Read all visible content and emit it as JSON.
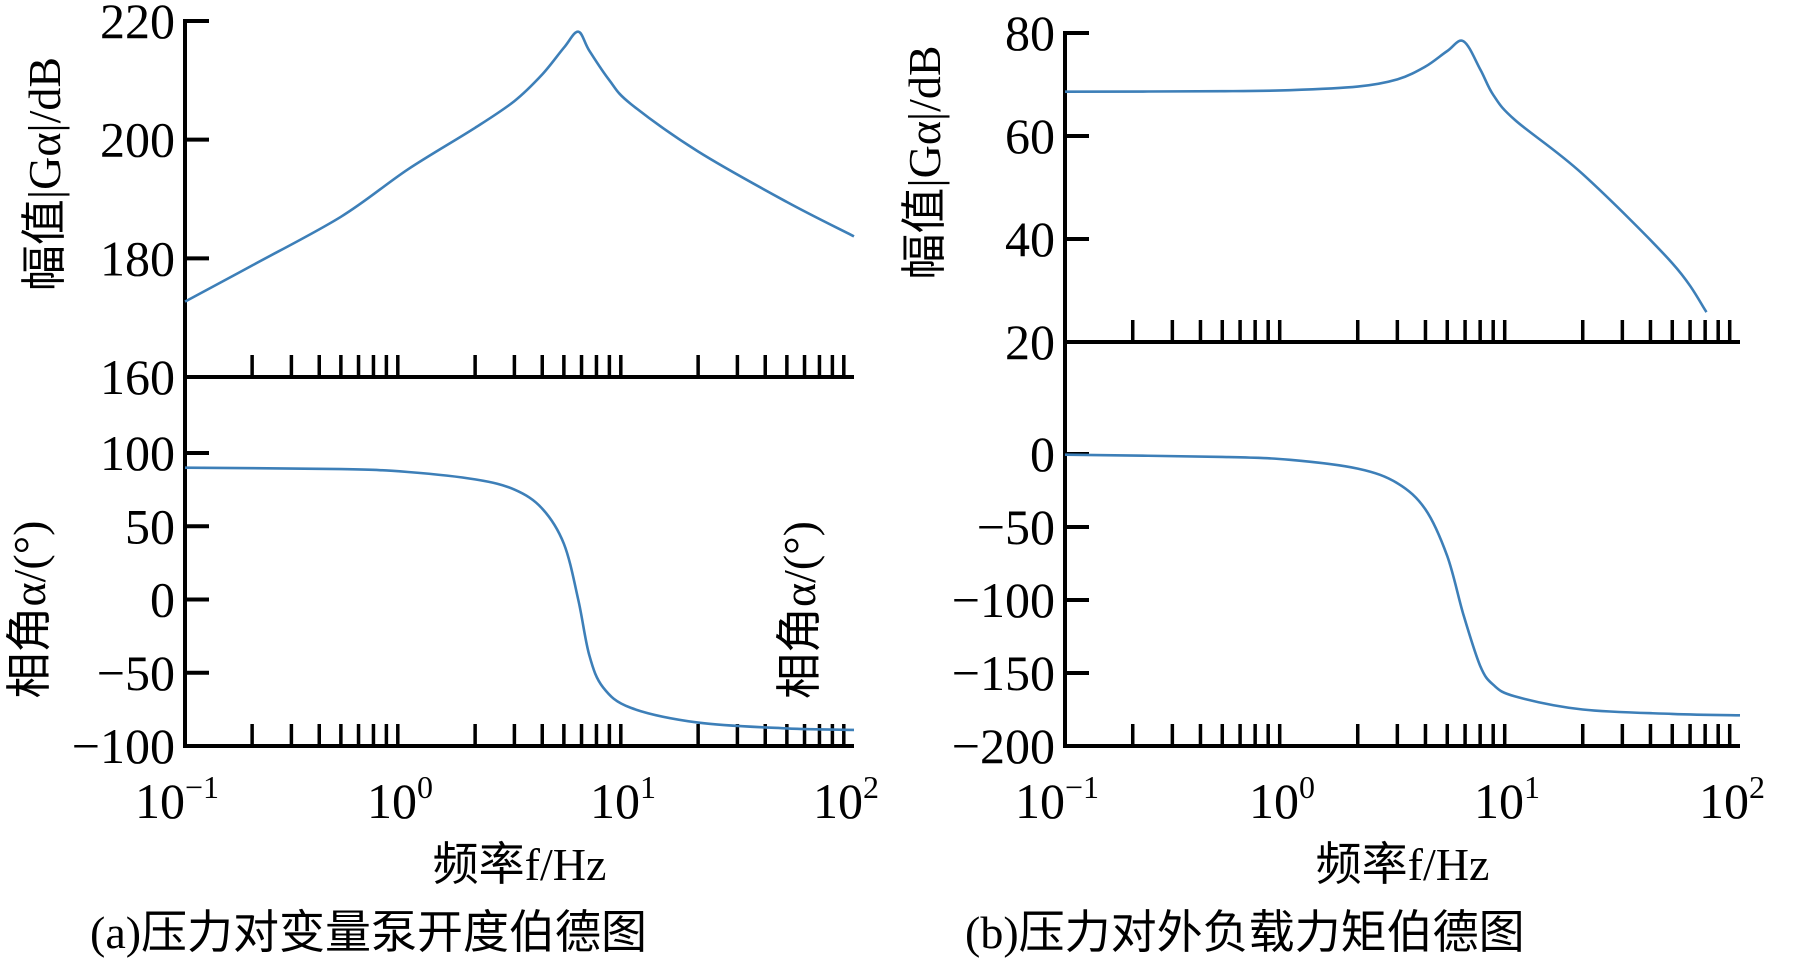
{
  "chart_data": [
    {
      "type": "line",
      "caption": "(a)压力对变量泵开度伯德图",
      "xlabel": "频率f/Hz",
      "xscale": "log",
      "xlim": [
        0.1,
        100
      ],
      "xticks": [
        "10^-1",
        "10^0",
        "10^1",
        "10^2"
      ],
      "line_color": "#3d7fb8",
      "magnitude": {
        "ylabel": "幅值|Gα|/dB",
        "ylim": [
          160,
          220
        ],
        "yticks": [
          220,
          200,
          180,
          160
        ],
        "x": [
          0.1,
          0.2,
          0.5,
          1,
          2,
          3,
          4,
          5,
          5.8,
          6.5,
          8,
          10,
          20,
          50,
          100
        ],
        "y": [
          172.7,
          178.8,
          187.0,
          195.0,
          202.0,
          206.5,
          211.0,
          215.5,
          218.2,
          215.0,
          210.0,
          206.0,
          198.0,
          189.5,
          183.7
        ]
      },
      "phase": {
        "ylabel": "相角α/(°)",
        "ylim": [
          -100,
          100
        ],
        "yticks": [
          100,
          50,
          0,
          -50,
          -100
        ],
        "x": [
          0.1,
          0.5,
          1,
          2,
          3,
          4,
          5,
          5.8,
          6.5,
          7.5,
          10,
          20,
          50,
          100
        ],
        "y": [
          90,
          89,
          87,
          82,
          75,
          62,
          38,
          0,
          -38,
          -60,
          -74,
          -84,
          -88,
          -89
        ]
      }
    },
    {
      "type": "line",
      "caption": "(b)压力对外负载力矩伯德图",
      "xlabel": "频率f/Hz",
      "xscale": "log",
      "xlim": [
        0.1,
        100
      ],
      "xticks": [
        "10^-1",
        "10^0",
        "10^1",
        "10^2"
      ],
      "line_color": "#3d7fb8",
      "magnitude": {
        "ylabel": "幅值|Gα|/dB",
        "ylim": [
          20,
          80
        ],
        "yticks": [
          80,
          60,
          40,
          20
        ],
        "x": [
          0.1,
          0.5,
          1,
          2,
          3,
          4,
          5,
          5.9,
          7,
          8,
          10,
          20,
          50,
          71
        ],
        "y": [
          68.6,
          68.7,
          68.9,
          69.6,
          71.0,
          73.5,
          76.5,
          78.4,
          73.0,
          68.0,
          63.1,
          52.6,
          35.3,
          25.8
        ]
      },
      "phase": {
        "ylabel": "相角α/(°)",
        "ylim": [
          -200,
          0
        ],
        "yticks": [
          0,
          -50,
          -100,
          -150,
          -200
        ],
        "x": [
          0.1,
          0.5,
          1,
          2,
          3,
          4,
          5,
          5.9,
          7,
          8,
          10,
          20,
          50,
          100
        ],
        "y": [
          -0.5,
          -2,
          -4,
          -10,
          -20,
          -38,
          -70,
          -110,
          -145,
          -158,
          -166,
          -175,
          -178,
          -179
        ]
      }
    }
  ]
}
